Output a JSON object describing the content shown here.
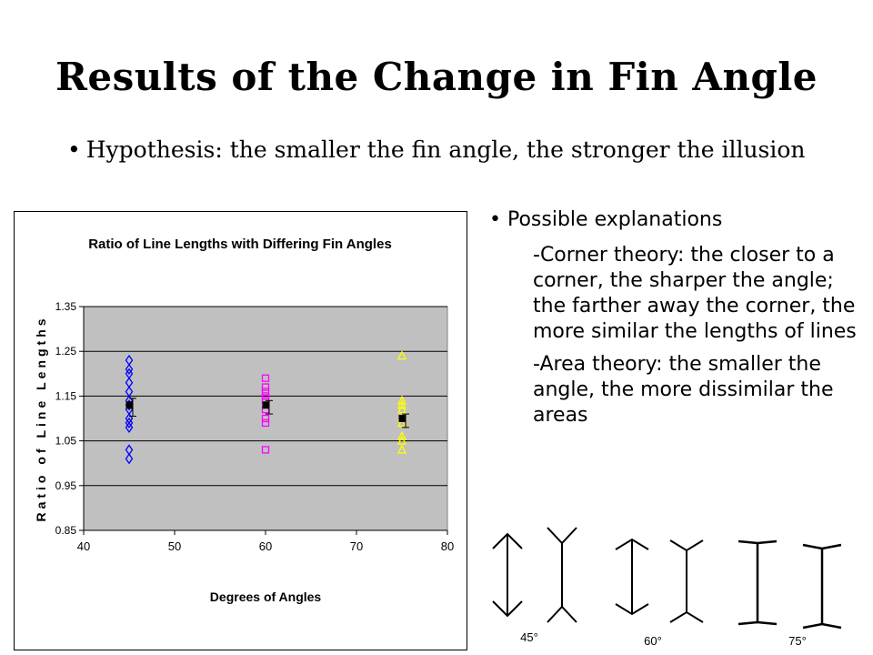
{
  "slide": {
    "title": "Results of the Change in Fin Angle",
    "bullet_symbol": "•",
    "hypothesis": "Hypothesis: the smaller the fin angle, the stronger the illusion",
    "possible_explanations": "Possible explanations",
    "corner_theory": "-Corner theory: the closer to a corner, the sharper the angle; the farther away the corner, the more similar the lengths of lines",
    "area_theory": "-Area theory: the smaller the angle, the more dissimilar the areas",
    "fin_labels": [
      "45°",
      "60°",
      "75°"
    ]
  },
  "chart_data": {
    "type": "scatter",
    "title": "Ratio of Line Lengths with Differing Fin Angles",
    "xlabel": "Degrees of Angles",
    "ylabel": "Ratio of Line Lengths",
    "xlim": [
      40,
      80
    ],
    "ylim": [
      0.85,
      1.35
    ],
    "xticks": [
      "40",
      "50",
      "60",
      "70",
      "80"
    ],
    "yticks": [
      "0.85",
      "0.95",
      "1.05",
      "1.15",
      "1.25",
      "1.35"
    ],
    "grid": true,
    "legend": "none",
    "colors": {
      "plot_bg": "#c0c0c0",
      "s45": "#0000ff",
      "s60": "#ff00ff",
      "s75": "#ffff00",
      "mean": "#000000"
    },
    "series": [
      {
        "x": 45,
        "marker": "diamond",
        "color": "#0000ff",
        "values": [
          1.23,
          1.21,
          1.2,
          1.18,
          1.16,
          1.14,
          1.13,
          1.12,
          1.1,
          1.09,
          1.08,
          1.03,
          1.01
        ]
      },
      {
        "x": 60,
        "marker": "square",
        "color": "#ff00ff",
        "values": [
          1.19,
          1.17,
          1.16,
          1.15,
          1.14,
          1.12,
          1.1,
          1.09,
          1.03
        ]
      },
      {
        "x": 75,
        "marker": "triangle",
        "color": "#ffff00",
        "values": [
          1.24,
          1.14,
          1.13,
          1.12,
          1.1,
          1.09,
          1.06,
          1.05,
          1.03
        ]
      }
    ],
    "means": [
      {
        "x": 45,
        "y": 1.13,
        "error_low": 1.105,
        "error_high": 1.145
      },
      {
        "x": 60,
        "y": 1.13,
        "error_low": 1.11,
        "error_high": 1.14
      },
      {
        "x": 75,
        "y": 1.1,
        "error_low": 1.08,
        "error_high": 1.11
      }
    ]
  }
}
